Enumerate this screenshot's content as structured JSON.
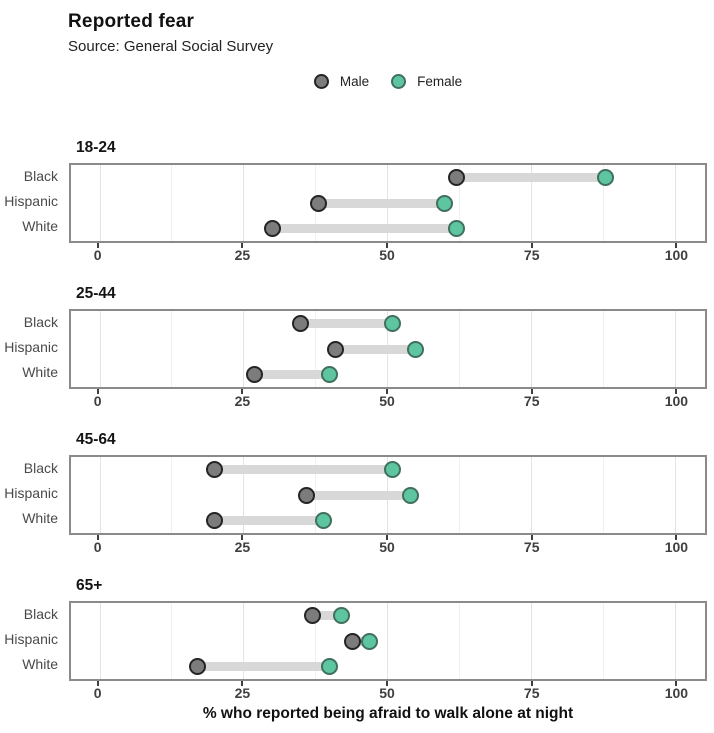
{
  "header": {
    "title": "Reported fear",
    "subtitle": "Source: General Social Survey"
  },
  "legend": {
    "items": [
      {
        "label": "Male"
      },
      {
        "label": "Female"
      }
    ]
  },
  "xaxis": {
    "label": "% who reported being afraid to walk alone at night",
    "ticks": [
      0,
      25,
      50,
      75,
      100
    ],
    "minor_ticks": [
      12.5,
      37.5,
      62.5,
      87.5
    ],
    "min": 0,
    "max": 100
  },
  "yaxis": {
    "categories": [
      "Black",
      "Hispanic",
      "White"
    ]
  },
  "colors": {
    "male_fill": "#7c7c7c",
    "male_stroke": "#252525",
    "female_fill": "#5ec5a1",
    "female_stroke": "#41705f",
    "bar": "#d8d8d8",
    "grid_major": "#e3e3e3",
    "grid_minor": "#f0f0f0",
    "panel_border": "#8a8a8a"
  },
  "chart_data": {
    "type": "dumbbell",
    "title": "Reported fear",
    "subtitle": "Source: General Social Survey",
    "xlabel": "% who reported being afraid to walk alone at night",
    "xlim": [
      0,
      100
    ],
    "x_ticks": [
      0,
      25,
      50,
      75,
      100
    ],
    "x_minor_ticks": [
      12.5,
      37.5,
      62.5,
      87.5
    ],
    "series": [
      "Male",
      "Female"
    ],
    "legend_position": "top-center",
    "grid": true,
    "panels": [
      {
        "age_group": "18-24",
        "rows": [
          {
            "label": "Black",
            "male": 62,
            "female": 88
          },
          {
            "label": "Hispanic",
            "male": 38,
            "female": 60
          },
          {
            "label": "White",
            "male": 30,
            "female": 62
          }
        ]
      },
      {
        "age_group": "25-44",
        "rows": [
          {
            "label": "Black",
            "male": 35,
            "female": 51
          },
          {
            "label": "Hispanic",
            "male": 41,
            "female": 55
          },
          {
            "label": "White",
            "male": 27,
            "female": 40
          }
        ]
      },
      {
        "age_group": "45-64",
        "rows": [
          {
            "label": "Black",
            "male": 20,
            "female": 51
          },
          {
            "label": "Hispanic",
            "male": 36,
            "female": 54
          },
          {
            "label": "White",
            "male": 20,
            "female": 39
          }
        ]
      },
      {
        "age_group": "65+",
        "rows": [
          {
            "label": "Black",
            "male": 37,
            "female": 42
          },
          {
            "label": "Hispanic",
            "male": 44,
            "female": 47
          },
          {
            "label": "White",
            "male": 17,
            "female": 40
          }
        ]
      }
    ]
  }
}
